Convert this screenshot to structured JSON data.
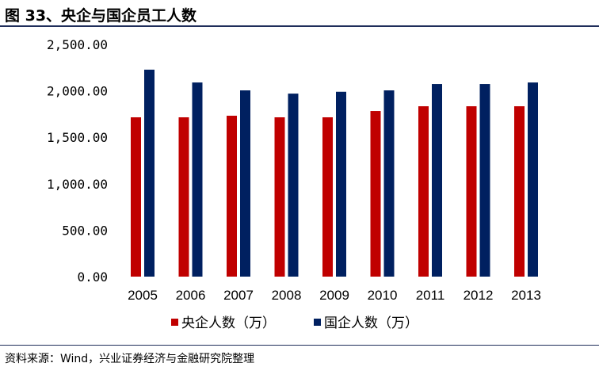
{
  "header": {
    "title": "图 33、央企与国企员工人数"
  },
  "footer": {
    "source": "资料来源：Wind，兴业证券经济与金融研究院整理"
  },
  "chart_data": {
    "type": "bar",
    "title": "",
    "categories": [
      "2005",
      "2006",
      "2007",
      "2008",
      "2009",
      "2010",
      "2011",
      "2012",
      "2013"
    ],
    "series": [
      {
        "name": "央企人数（万）",
        "color": "#c00000",
        "values": [
          1715,
          1715,
          1732,
          1715,
          1715,
          1783,
          1834,
          1834,
          1834
        ]
      },
      {
        "name": "国企人数（万）",
        "color": "#002060",
        "values": [
          2228,
          2090,
          2005,
          1970,
          1990,
          2005,
          2073,
          2073,
          2090
        ]
      }
    ],
    "yticks": [
      "0.00",
      "500.00",
      "1,000.00",
      "1,500.00",
      "2,000.00",
      "2,500.00"
    ],
    "ylim": [
      0,
      2500
    ],
    "grid": false,
    "legend": "bottom"
  }
}
